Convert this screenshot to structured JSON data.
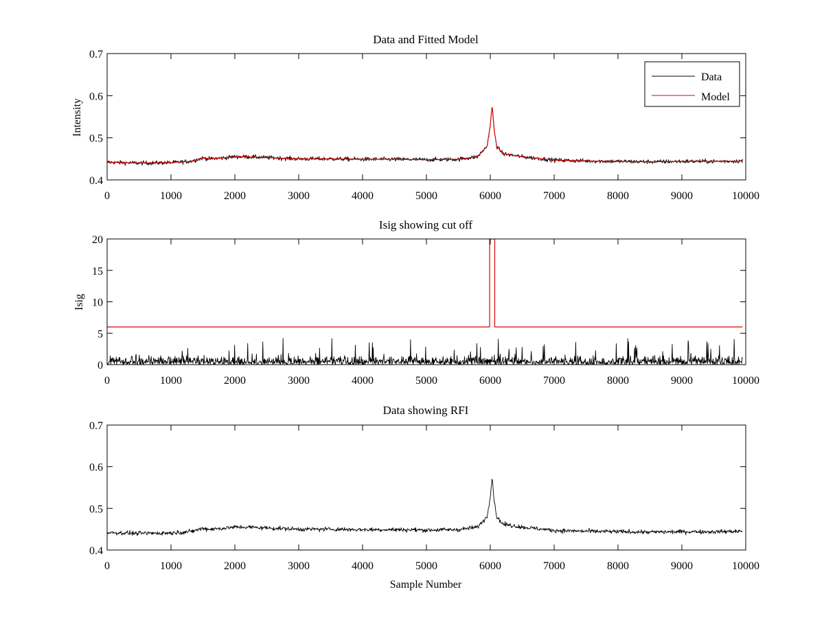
{
  "chart_data": [
    {
      "type": "line",
      "title": "Data and Fitted Model",
      "xlabel": "",
      "ylabel": "Intensity",
      "xlim": [
        0,
        10000
      ],
      "ylim": [
        0.4,
        0.7
      ],
      "xticks": [
        "0",
        "1000",
        "2000",
        "3000",
        "4000",
        "5000",
        "6000",
        "7000",
        "8000",
        "9000",
        "10000"
      ],
      "xtick_values": [
        0,
        1000,
        2000,
        3000,
        4000,
        5000,
        6000,
        7000,
        8000,
        9000,
        10000
      ],
      "yticks": [
        "0.4",
        "0.5",
        "0.6",
        "0.7"
      ],
      "ytick_values": [
        0.4,
        0.5,
        0.6,
        0.7
      ],
      "legend_position": "top-right",
      "series": [
        {
          "name": "Data",
          "color": "#000000",
          "kind": "noisy",
          "x": [
            0,
            500,
            1000,
            1300,
            1500,
            1600,
            1800,
            2000,
            2200,
            2500,
            3000,
            3500,
            4000,
            4500,
            5000,
            5500,
            5800,
            5950,
            6000,
            6030,
            6060,
            6100,
            6200,
            6500,
            7000,
            7500,
            8000,
            8500,
            9000,
            9500,
            10000
          ],
          "y": [
            0.442,
            0.44,
            0.441,
            0.444,
            0.452,
            0.45,
            0.452,
            0.455,
            0.455,
            0.453,
            0.45,
            0.45,
            0.449,
            0.449,
            0.448,
            0.449,
            0.455,
            0.48,
            0.53,
            0.575,
            0.52,
            0.48,
            0.462,
            0.455,
            0.447,
            0.445,
            0.444,
            0.443,
            0.444,
            0.444,
            0.445
          ],
          "noise": 0.0035
        },
        {
          "name": "Model",
          "color": "#e00000",
          "kind": "smooth",
          "x": [
            0,
            500,
            1000,
            1300,
            1500,
            1600,
            1800,
            2000,
            2200,
            2500,
            3000,
            3500,
            4000,
            4500,
            5000,
            5500,
            5800,
            5950,
            6000,
            6030,
            6060,
            6100,
            6200,
            6500,
            7000,
            7500,
            8000,
            8500,
            9000,
            9500,
            10000
          ],
          "y": [
            0.442,
            0.44,
            0.441,
            0.444,
            0.452,
            0.45,
            0.452,
            0.455,
            0.455,
            0.453,
            0.45,
            0.45,
            0.449,
            0.449,
            0.448,
            0.449,
            0.455,
            0.48,
            0.53,
            0.577,
            0.52,
            0.48,
            0.462,
            0.455,
            0.447,
            0.445,
            0.444,
            0.443,
            0.444,
            0.444,
            0.445
          ]
        }
      ]
    },
    {
      "type": "line",
      "title": "Isig showing cut off",
      "xlabel": "",
      "ylabel": "Isig",
      "xlim": [
        0,
        10000
      ],
      "ylim": [
        0,
        20
      ],
      "xticks": [
        "0",
        "1000",
        "2000",
        "3000",
        "4000",
        "5000",
        "6000",
        "7000",
        "8000",
        "9000",
        "10000"
      ],
      "xtick_values": [
        0,
        1000,
        2000,
        3000,
        4000,
        5000,
        6000,
        7000,
        8000,
        9000,
        10000
      ],
      "yticks": [
        "0",
        "5",
        "10",
        "15",
        "20"
      ],
      "ytick_values": [
        0,
        5,
        10,
        15,
        20
      ],
      "series": [
        {
          "name": "Isig",
          "color": "#000000",
          "kind": "spiky",
          "baseline": 0,
          "typical": 1.0,
          "max": 4.2
        },
        {
          "name": "Cut off",
          "color": "#e00000",
          "kind": "step",
          "x": [
            0,
            5990,
            5990,
            6070,
            6070,
            9950
          ],
          "y": [
            6,
            6,
            20,
            20,
            6,
            6
          ]
        }
      ]
    },
    {
      "type": "line",
      "title": "Data showing RFI",
      "xlabel": "Sample Number",
      "ylabel": "",
      "xlim": [
        0,
        10000
      ],
      "ylim": [
        0.4,
        0.7
      ],
      "xticks": [
        "0",
        "1000",
        "2000",
        "3000",
        "4000",
        "5000",
        "6000",
        "7000",
        "8000",
        "9000",
        "10000"
      ],
      "xtick_values": [
        0,
        1000,
        2000,
        3000,
        4000,
        5000,
        6000,
        7000,
        8000,
        9000,
        10000
      ],
      "yticks": [
        "0.4",
        "0.5",
        "0.6",
        "0.7"
      ],
      "ytick_values": [
        0.4,
        0.5,
        0.6,
        0.7
      ],
      "series": [
        {
          "name": "Data",
          "color": "#000000",
          "kind": "noisy",
          "x": [
            0,
            500,
            1000,
            1300,
            1500,
            1600,
            1800,
            2000,
            2200,
            2500,
            3000,
            3500,
            4000,
            4500,
            5000,
            5500,
            5800,
            5950,
            6000,
            6030,
            6060,
            6100,
            6200,
            6500,
            7000,
            7500,
            8000,
            8500,
            9000,
            9500,
            10000
          ],
          "y": [
            0.442,
            0.44,
            0.441,
            0.444,
            0.452,
            0.45,
            0.452,
            0.455,
            0.455,
            0.453,
            0.45,
            0.45,
            0.449,
            0.449,
            0.448,
            0.449,
            0.455,
            0.48,
            0.53,
            0.575,
            0.52,
            0.48,
            0.462,
            0.455,
            0.447,
            0.445,
            0.444,
            0.443,
            0.444,
            0.444,
            0.445
          ],
          "noise": 0.0035
        }
      ]
    }
  ]
}
